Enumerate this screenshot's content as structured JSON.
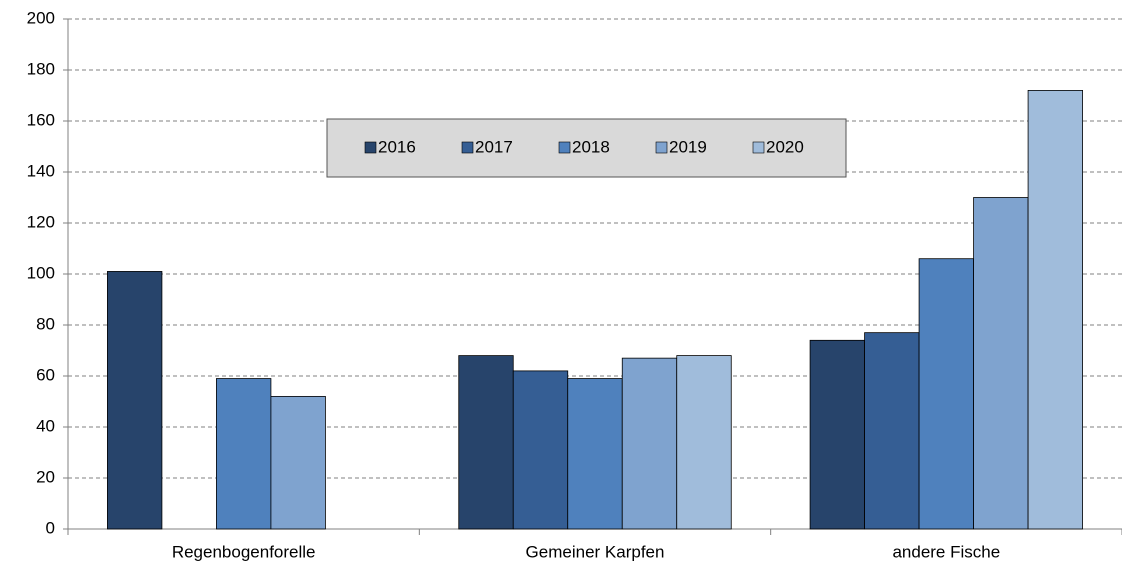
{
  "chart_data": {
    "type": "bar",
    "categories": [
      "Regenbogenforelle",
      "Gemeiner Karpfen",
      "andere Fische"
    ],
    "series": [
      {
        "name": "2016",
        "color": "#27446b",
        "values": [
          101,
          68,
          74
        ]
      },
      {
        "name": "2017",
        "color": "#355e94",
        "values": [
          null,
          62,
          77
        ]
      },
      {
        "name": "2018",
        "color": "#4f81bd",
        "values": [
          59,
          59,
          106
        ]
      },
      {
        "name": "2019",
        "color": "#7fa3cf",
        "values": [
          52,
          67,
          130
        ]
      },
      {
        "name": "2020",
        "color": "#a0bcdb",
        "values": [
          null,
          68,
          172
        ]
      }
    ],
    "ylim": [
      0,
      200
    ],
    "yticks": [
      0,
      20,
      40,
      60,
      80,
      100,
      120,
      140,
      160,
      180,
      200
    ],
    "grid": true,
    "legend": "top"
  }
}
